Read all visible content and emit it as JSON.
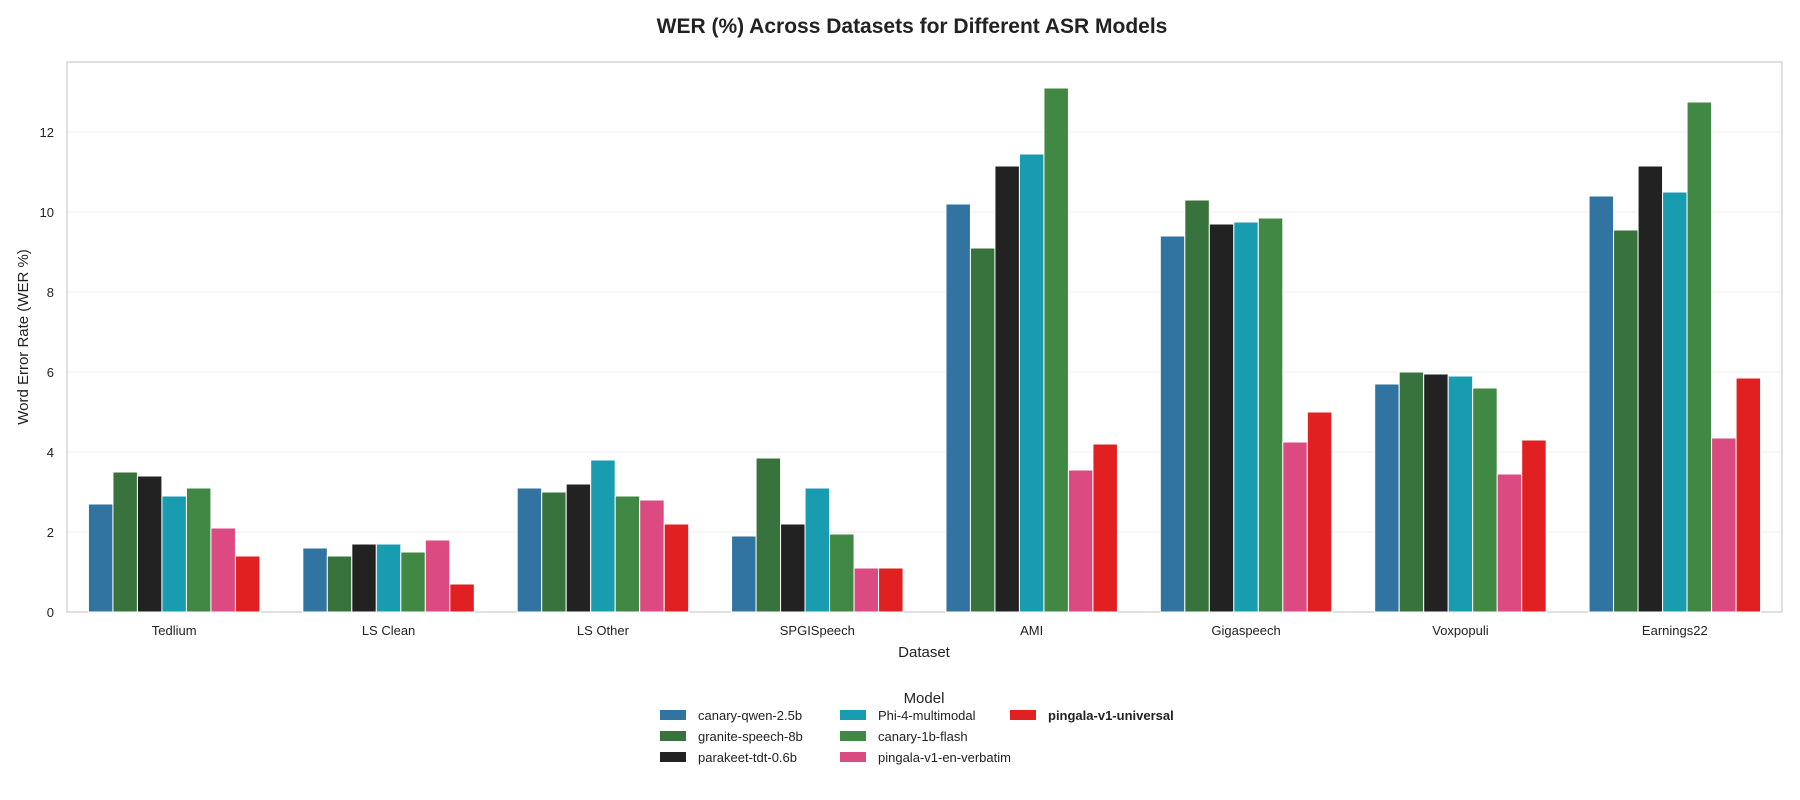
{
  "chart_data": {
    "type": "bar",
    "title": "WER (%) Across Datasets for Different ASR Models",
    "xlabel": "Dataset",
    "ylabel": "Word Error Rate (WER %)",
    "ylim": [
      0,
      13.75
    ],
    "yticks": [
      0,
      2,
      4,
      6,
      8,
      10,
      12
    ],
    "grid": true,
    "legend_title": "Model",
    "legend_position": "bottom-center",
    "categories": [
      "Tedlium",
      "LS Clean",
      "LS Other",
      "SPGISpeech",
      "AMI",
      "Gigaspeech",
      "Voxpopuli",
      "Earnings22"
    ],
    "series": [
      {
        "name": "canary-qwen-2.5b",
        "color": "#3274a1",
        "bold": false,
        "values": [
          2.7,
          1.6,
          3.1,
          1.9,
          10.2,
          9.4,
          5.7,
          10.4
        ]
      },
      {
        "name": "granite-speech-8b",
        "color": "#38733d",
        "bold": false,
        "values": [
          3.5,
          1.4,
          3.0,
          3.85,
          9.1,
          10.3,
          6.0,
          9.55
        ]
      },
      {
        "name": "parakeet-tdt-0.6b",
        "color": "#222222",
        "bold": false,
        "values": [
          3.4,
          1.7,
          3.2,
          2.2,
          11.15,
          9.7,
          5.95,
          11.15
        ]
      },
      {
        "name": "Phi-4-multimodal",
        "color": "#199bb0",
        "bold": false,
        "values": [
          2.9,
          1.7,
          3.8,
          3.1,
          11.45,
          9.75,
          5.9,
          10.5
        ]
      },
      {
        "name": "canary-1b-flash",
        "color": "#428845",
        "bold": false,
        "values": [
          3.1,
          1.5,
          2.9,
          1.95,
          13.1,
          9.85,
          5.6,
          12.75
        ]
      },
      {
        "name": "pingala-v1-en-verbatim",
        "color": "#dc4a82",
        "bold": false,
        "values": [
          2.1,
          1.8,
          2.8,
          1.1,
          3.55,
          4.25,
          3.45,
          4.35
        ]
      },
      {
        "name": "pingala-v1-universal",
        "color": "#e02021",
        "bold": true,
        "values": [
          1.4,
          0.7,
          2.2,
          1.1,
          4.2,
          5.0,
          4.3,
          5.85
        ]
      }
    ]
  }
}
